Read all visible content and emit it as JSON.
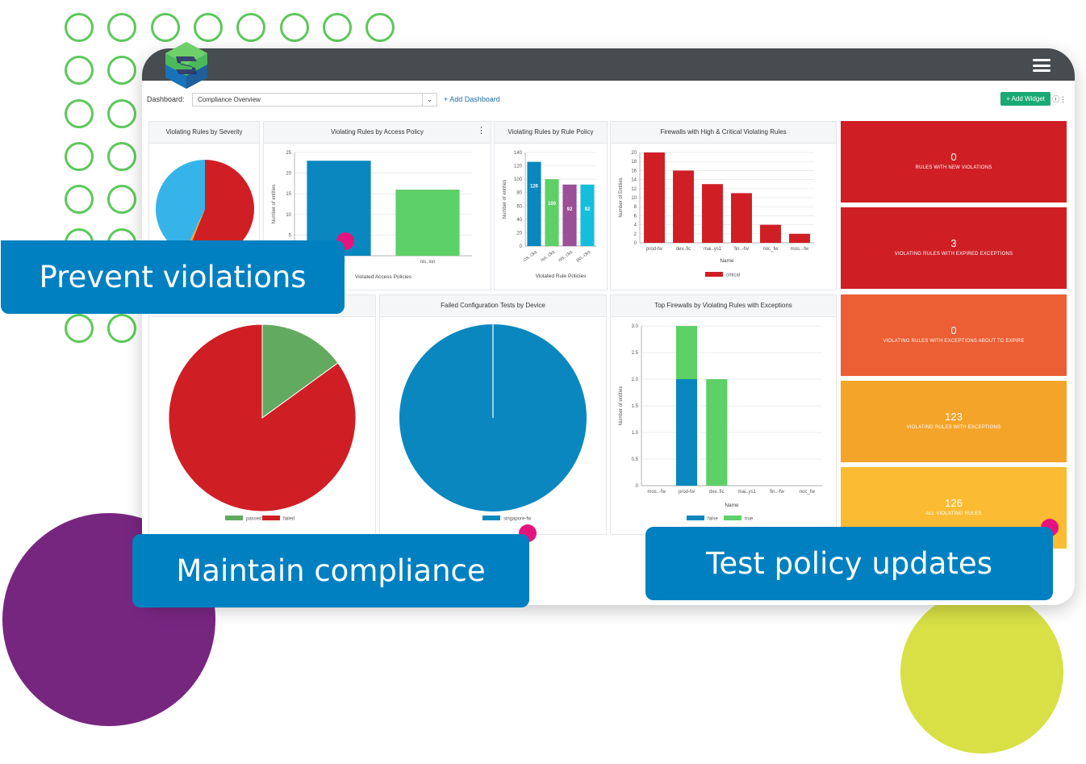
{
  "app": {
    "dashboard_label": "Dashboard:",
    "dashboard_selected": "Compliance Overview",
    "add_dashboard": "+ Add Dashboard",
    "add_widget": "+ Add Widget"
  },
  "callouts": {
    "prevent": "Prevent violations",
    "maintain": "Maintain compliance",
    "test": "Test policy updates"
  },
  "colors": {
    "red": "#cf1f24",
    "blue": "#0a87bf",
    "green": "#5dd067",
    "light_blue": "#36b4ea",
    "purple": "#9b4f96",
    "cyan": "#16bedb",
    "callout": "#0080c0",
    "ring_green": "#5cc85a",
    "blob_purple": "#772680",
    "blob_lime": "#d8e045"
  },
  "tiles": [
    {
      "value": "0",
      "label": "RULES WITH NEW VIOLATIONS",
      "color": "#cf1f24"
    },
    {
      "value": "3",
      "label": "VIOLATING RULES WITH EXPIRED EXCEPTIONS",
      "color": "#cf1f24"
    },
    {
      "value": "0",
      "label": "VIOLATING RULES WITH EXCEPTIONS ABOUT TO EXPIRE",
      "color": "#ec5e33"
    },
    {
      "value": "123",
      "label": "VIOLATING RULES WITH EXCEPTIONS",
      "color": "#f5a42a"
    },
    {
      "value": "126",
      "label": "ALL VIOLATING RULES",
      "color": "#fbbc33"
    }
  ],
  "panels": {
    "severity": {
      "title": "Violating Rules by Severity"
    },
    "access": {
      "title": "Violating Rules by Access Policy"
    },
    "rule_policy": {
      "title": "Violating Rules by Rule Policy"
    },
    "firewalls": {
      "title": "Firewalls with High & Critical Violating Rules"
    },
    "failed_tests": {
      "title": "Failed Configuration Tests by Device"
    },
    "top_firewalls": {
      "title": "Top Firewalls by Violating Rules with Exceptions"
    }
  },
  "chart_data": [
    {
      "id": "severity",
      "type": "pie",
      "title": "Violating Rules by Severity",
      "slices": [
        {
          "value": 56,
          "color": "#cf1f24"
        },
        {
          "value": 1,
          "color": "#f5a42a"
        },
        {
          "value": 43,
          "color": "#36b4ea"
        }
      ]
    },
    {
      "id": "access",
      "type": "bar",
      "title": "Violating Rules by Access Policy",
      "categories": [
        "policy",
        "nis..ion"
      ],
      "values": [
        23,
        16
      ],
      "colors": [
        "#0a87bf",
        "#5dd067"
      ],
      "xlabel": "Violated Access Policies",
      "ylabel": "Number of entities",
      "yticks": [
        "5",
        "10",
        "15",
        "20",
        "25"
      ],
      "ylim": [
        0,
        25
      ]
    },
    {
      "id": "rule_policy",
      "type": "bar",
      "title": "Violating Rules by Rule Policy",
      "categories": [
        "cis..cks",
        "iso..cks",
        "nis..cks",
        "pci..cks"
      ],
      "values": [
        126,
        100,
        92,
        92
      ],
      "data_labels": [
        "126",
        "100",
        "92",
        "92"
      ],
      "colors": [
        "#0a87bf",
        "#5dd067",
        "#9b4f96",
        "#16bedb"
      ],
      "xlabel": "Violated Rule Policies",
      "ylabel": "Number of entities",
      "yticks": [
        "0",
        "20",
        "40",
        "60",
        "80",
        "100",
        "120",
        "140"
      ],
      "ylim": [
        0,
        140
      ]
    },
    {
      "id": "firewalls",
      "type": "bar",
      "title": "Firewalls with High & Critical Violating Rules",
      "categories": [
        "prod-fw",
        "dev..fic",
        "mai..ys1",
        "fin..-fw",
        "noc_fw",
        "mos..-fw"
      ],
      "values": [
        20,
        16,
        13,
        11,
        4,
        2
      ],
      "colors": [
        "#cf1f24"
      ],
      "xlabel": "Name",
      "ylabel": "Number of Entities",
      "yticks": [
        "0",
        "2",
        "4",
        "6",
        "8",
        "10",
        "12",
        "14",
        "16",
        "18",
        "20"
      ],
      "ylim": [
        0,
        20
      ],
      "legend": [
        "critical"
      ]
    },
    {
      "id": "passed_failed",
      "type": "pie",
      "slices": [
        {
          "name": "passed",
          "value": 15,
          "color": "#62aa5f"
        },
        {
          "name": "failed",
          "value": 85,
          "color": "#cf1f24"
        }
      ],
      "legend": [
        "passed",
        "failed"
      ]
    },
    {
      "id": "failed_tests",
      "type": "pie",
      "title": "Failed Configuration Tests by Device",
      "slices": [
        {
          "name": "singapore-fw",
          "value": 100,
          "color": "#0a87bf"
        }
      ],
      "legend": [
        "singapore-fw"
      ]
    },
    {
      "id": "top_firewalls",
      "type": "bar",
      "title": "Top Firewalls by Violating Rules with Exceptions",
      "categories": [
        "mos..-fw",
        "prod-fw",
        "dev..fic",
        "mai..ys1",
        "fin..-fw",
        "noc_fw"
      ],
      "series": [
        {
          "name": "false",
          "values": [
            0,
            2,
            0,
            0,
            0,
            0
          ],
          "color": "#0a87bf"
        },
        {
          "name": "true",
          "values": [
            0,
            1,
            2,
            0,
            0,
            0
          ],
          "color": "#5dd067"
        }
      ],
      "xlabel": "Name",
      "ylabel": "Number of entities",
      "yticks": [
        "0",
        "0.5",
        "1.0",
        "1.5",
        "2.0",
        "2.5",
        "3.0"
      ],
      "ylim": [
        0,
        3
      ],
      "legend": [
        "false",
        "true"
      ]
    }
  ]
}
